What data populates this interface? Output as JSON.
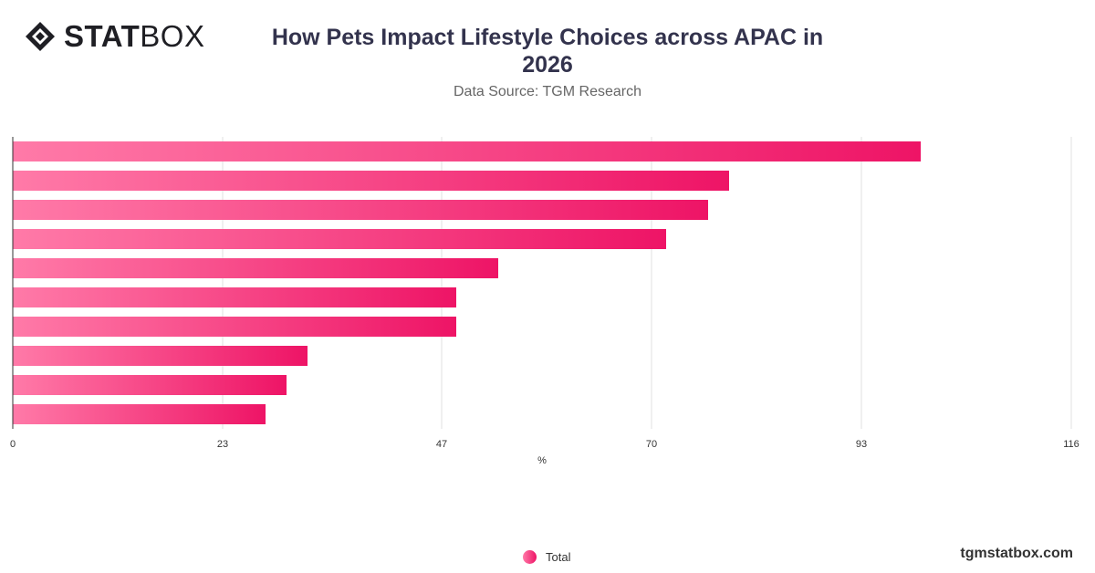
{
  "logo": {
    "text_bold": "STAT",
    "text_light": "BOX"
  },
  "header": {
    "title_line1": "How Pets Impact Lifestyle Choices across APAC in",
    "title_line2": "2026",
    "subtitle": "Data Source: TGM Research"
  },
  "footer": {
    "brand": "tgmstatbox.com"
  },
  "colors": {
    "bar_start": "#ff7aa8",
    "bar_end": "#ee1466",
    "grid": "#e0e0e0",
    "axis": "#333333",
    "tick_text": "#333333"
  },
  "chart_data": {
    "type": "bar",
    "orientation": "horizontal",
    "title": "How Pets Impact Lifestyle Choices across APAC in 2026",
    "subtitle": "Data Source: TGM Research",
    "xlabel": "%",
    "ylabel": "",
    "xlim": [
      0,
      116
    ],
    "x_ticks": [
      0,
      23,
      47,
      70,
      93,
      116
    ],
    "grid": true,
    "legend_position": "bottom",
    "series": [
      {
        "name": "Total",
        "values": [
          99.5,
          78.5,
          76.2,
          71.6,
          53.2,
          48.6,
          48.6,
          32.3,
          30.0,
          27.7
        ]
      }
    ]
  }
}
